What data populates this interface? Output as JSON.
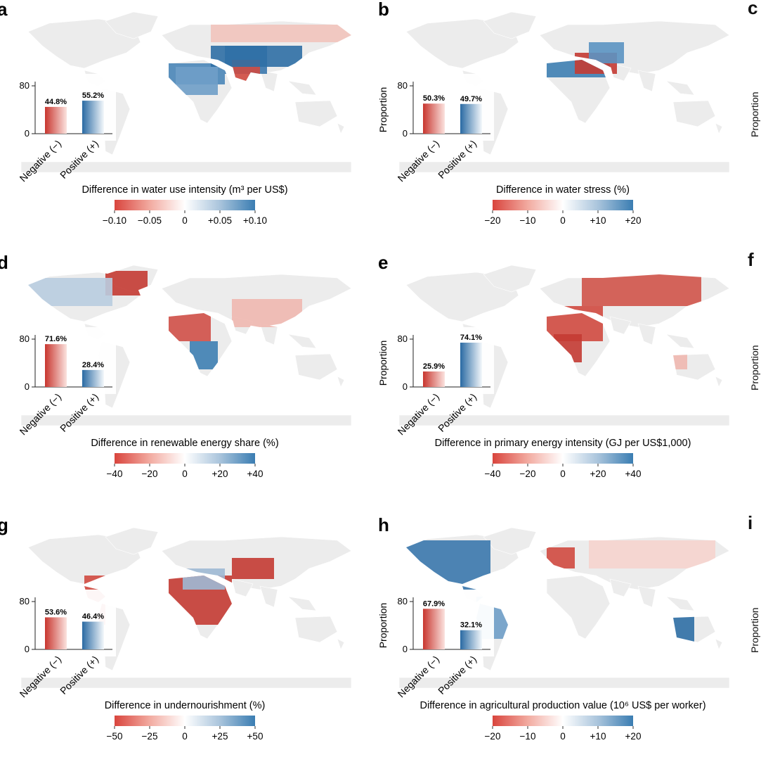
{
  "panels": [
    {
      "label": "a",
      "pos": "r0c0",
      "neg": 44.8,
      "pos_pct": 55.2,
      "neg_label": "44.8%",
      "pos_label": "55.2%",
      "show_ylabel": false,
      "title": "Difference in water use intensity (m³ per US$)",
      "ticks": [
        "−0.10",
        "−0.05",
        "0",
        "+0.05",
        "+0.10"
      ],
      "cb_offset": 0,
      "tint": [
        {
          "x": 210,
          "y": 85,
          "w": 110,
          "h": 30,
          "c": "#4a86b8"
        },
        {
          "x": 250,
          "y": 90,
          "w": 60,
          "h": 40,
          "c": "#6f9fc8"
        },
        {
          "x": 320,
          "y": 60,
          "w": 60,
          "h": 40,
          "c": "#3b78ad"
        },
        {
          "x": 330,
          "y": 80,
          "w": 40,
          "h": 30,
          "c": "#d04a40"
        },
        {
          "x": 300,
          "y": 30,
          "w": 200,
          "h": 25,
          "c": "#f2c4bd"
        },
        {
          "x": 300,
          "y": 60,
          "w": 130,
          "h": 30,
          "c": "#2f6fa5"
        }
      ]
    },
    {
      "label": "b",
      "pos": "r0c1",
      "neg": 50.3,
      "pos_pct": 49.7,
      "neg_label": "50.3%",
      "pos_label": "49.7%",
      "show_ylabel": true,
      "title": "Difference in water stress (%)",
      "ticks": [
        "−20",
        "−10",
        "0",
        "+10",
        "+20"
      ],
      "cb_offset": 0,
      "tint": [
        {
          "x": 230,
          "y": 80,
          "w": 100,
          "h": 25,
          "c": "#3e7fb3"
        },
        {
          "x": 280,
          "y": 70,
          "w": 60,
          "h": 30,
          "c": "#c43b33"
        },
        {
          "x": 300,
          "y": 55,
          "w": 50,
          "h": 30,
          "c": "#5b93c2"
        },
        {
          "x": 200,
          "y": 85,
          "w": 30,
          "h": 20,
          "c": "#6f9fc8"
        }
      ]
    },
    {
      "label": "d",
      "pos": "r1c0",
      "neg": 71.6,
      "pos_pct": 28.4,
      "neg_label": "71.6%",
      "pos_label": "28.4%",
      "show_ylabel": false,
      "title": "Difference in renewable energy share (%)",
      "ticks": [
        "−40",
        "−20",
        "0",
        "+20",
        "+40"
      ],
      "cb_offset": 0,
      "tint": [
        {
          "x": 150,
          "y": 20,
          "w": 60,
          "h": 35,
          "c": "#c43b33"
        },
        {
          "x": 240,
          "y": 80,
          "w": 60,
          "h": 40,
          "c": "#d05048"
        },
        {
          "x": 270,
          "y": 120,
          "w": 40,
          "h": 40,
          "c": "#3e7fb3"
        },
        {
          "x": 40,
          "y": 30,
          "w": 120,
          "h": 40,
          "c": "#b9cde0"
        },
        {
          "x": 330,
          "y": 60,
          "w": 100,
          "h": 40,
          "c": "#f0b8b0"
        }
      ]
    },
    {
      "label": "e",
      "pos": "r1c1",
      "neg": 25.9,
      "pos_pct": 74.1,
      "neg_label": "25.9%",
      "pos_label": "74.1%",
      "show_ylabel": true,
      "title": "Difference in primary energy intensity (GJ per US$1,000)",
      "ticks": [
        "−40",
        "−20",
        "0",
        "+20",
        "+40"
      ],
      "cb_offset": 0,
      "tint": [
        {
          "x": 290,
          "y": 25,
          "w": 170,
          "h": 45,
          "c": "#d0544a"
        },
        {
          "x": 230,
          "y": 70,
          "w": 90,
          "h": 50,
          "c": "#d04a40"
        },
        {
          "x": 250,
          "y": 110,
          "w": 40,
          "h": 40,
          "c": "#c43b33"
        },
        {
          "x": 400,
          "y": 130,
          "w": 40,
          "h": 30,
          "c": "#f0b8b0"
        }
      ]
    },
    {
      "label": "g",
      "pos": "r2c0",
      "neg": 53.6,
      "pos_pct": 46.4,
      "neg_label": "53.6%",
      "pos_label": "46.4%",
      "show_ylabel": false,
      "title": "Difference in undernourishment (%)",
      "ticks": [
        "−50",
        "−25",
        "0",
        "+25",
        "+50"
      ],
      "cb_offset": 0,
      "tint": [
        {
          "x": 240,
          "y": 80,
          "w": 90,
          "h": 70,
          "c": "#c43b33"
        },
        {
          "x": 120,
          "y": 80,
          "w": 30,
          "h": 70,
          "c": "#d04a40"
        },
        {
          "x": 330,
          "y": 55,
          "w": 60,
          "h": 30,
          "c": "#c43b33"
        },
        {
          "x": 260,
          "y": 70,
          "w": 60,
          "h": 30,
          "c": "#9fb9d4"
        }
      ]
    },
    {
      "label": "h",
      "pos": "r2c1",
      "neg": 67.9,
      "pos_pct": 32.1,
      "neg_label": "67.9%",
      "pos_label": "32.1%",
      "show_ylabel": true,
      "title": "Difference in agricultural production value (10⁶ US$ per worker)",
      "ticks": [
        "−20",
        "−10",
        "0",
        "+10",
        "+20"
      ],
      "cb_offset": 0,
      "tint": [
        {
          "x": 30,
          "y": 30,
          "w": 130,
          "h": 70,
          "c": "#3b78ad"
        },
        {
          "x": 380,
          "y": 130,
          "w": 70,
          "h": 50,
          "c": "#2f6fa5"
        },
        {
          "x": 140,
          "y": 110,
          "w": 50,
          "h": 60,
          "c": "#6f9fc8"
        },
        {
          "x": 240,
          "y": 40,
          "w": 40,
          "h": 30,
          "c": "#d04a40"
        },
        {
          "x": 300,
          "y": 30,
          "w": 180,
          "h": 40,
          "c": "#f6d4ce"
        }
      ]
    }
  ],
  "edge_labels": [
    "c",
    "f",
    "i"
  ],
  "edge_ylabel": "Proportion",
  "bar_axis": {
    "ymax_tick": "80",
    "ymin_tick": "0",
    "neg_category": "Negative (−)",
    "pos_category": "Positive (+)",
    "ylabel": "Proportion"
  },
  "colors": {
    "negative": "#c8362f",
    "positive": "#2a6aa3",
    "land": "#ececec",
    "neutral": "#f6f6f6"
  },
  "chart_data": [
    {
      "type": "bar",
      "panel": "a",
      "categories": [
        "Negative (−)",
        "Positive (+)"
      ],
      "values": [
        44.8,
        55.2
      ],
      "ylabel": "Proportion",
      "yticks": [
        0,
        80
      ],
      "colorbar_label": "Difference in water use intensity (m³ per US$)",
      "colorbar_ticks": [
        -0.1,
        -0.05,
        0,
        0.05,
        0.1
      ]
    },
    {
      "type": "bar",
      "panel": "b",
      "categories": [
        "Negative (−)",
        "Positive (+)"
      ],
      "values": [
        50.3,
        49.7
      ],
      "ylabel": "Proportion",
      "yticks": [
        0,
        80
      ],
      "colorbar_label": "Difference in water stress (%)",
      "colorbar_ticks": [
        -20,
        -10,
        0,
        10,
        20
      ]
    },
    {
      "type": "bar",
      "panel": "d",
      "categories": [
        "Negative (−)",
        "Positive (+)"
      ],
      "values": [
        71.6,
        28.4
      ],
      "ylabel": "Proportion",
      "yticks": [
        0,
        80
      ],
      "colorbar_label": "Difference in renewable energy share (%)",
      "colorbar_ticks": [
        -40,
        -20,
        0,
        20,
        40
      ]
    },
    {
      "type": "bar",
      "panel": "e",
      "categories": [
        "Negative (−)",
        "Positive (+)"
      ],
      "values": [
        25.9,
        74.1
      ],
      "ylabel": "Proportion",
      "yticks": [
        0,
        80
      ],
      "colorbar_label": "Difference in primary energy intensity (GJ per US$1,000)",
      "colorbar_ticks": [
        -40,
        -20,
        0,
        20,
        40
      ]
    },
    {
      "type": "bar",
      "panel": "g",
      "categories": [
        "Negative (−)",
        "Positive (+)"
      ],
      "values": [
        53.6,
        46.4
      ],
      "ylabel": "Proportion",
      "yticks": [
        0,
        80
      ],
      "colorbar_label": "Difference in undernourishment (%)",
      "colorbar_ticks": [
        -50,
        -25,
        0,
        25,
        50
      ]
    },
    {
      "type": "bar",
      "panel": "h",
      "categories": [
        "Negative (−)",
        "Positive (+)"
      ],
      "values": [
        67.9,
        32.1
      ],
      "ylabel": "Proportion",
      "yticks": [
        0,
        80
      ],
      "colorbar_label": "Difference in agricultural production value (10⁶ US$ per worker)",
      "colorbar_ticks": [
        -20,
        -10,
        0,
        10,
        20
      ]
    }
  ]
}
